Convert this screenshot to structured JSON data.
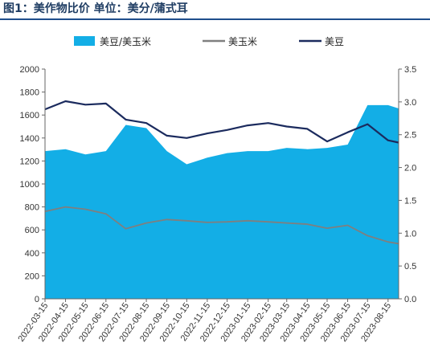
{
  "title": "图1：美作物比价 单位：美分/蒲式耳",
  "chart_data": {
    "type": "area+line",
    "x": [
      "2022-03-15",
      "2022-04-15",
      "2022-05-15",
      "2022-06-15",
      "2022-07-15",
      "2022-08-15",
      "2022-09-15",
      "2022-10-15",
      "2022-11-15",
      "2022-12-15",
      "2023-01-15",
      "2023-02-15",
      "2023-03-15",
      "2023-04-15",
      "2023-05-15",
      "2023-06-15",
      "2023-07-15",
      "2023-08-15",
      "2023-08-31"
    ],
    "x_tick_labels": [
      "2022-03-15",
      "2022-04-15",
      "2022-05-15",
      "2022-06-15",
      "2022-07-15",
      "2022-08-15",
      "2022-09-15",
      "2022-10-15",
      "2022-11-15",
      "2022-12-15",
      "2023-01-15",
      "2023-02-15",
      "2023-03-15",
      "2023-04-15",
      "2023-05-15",
      "2023-06-15",
      "2023-07-15",
      "2023-08-15"
    ],
    "left_axis": {
      "ylim": [
        0,
        2000
      ],
      "ticks": [
        "0",
        "200",
        "400",
        "600",
        "800",
        "1000",
        "1200",
        "1400",
        "1600",
        "1800",
        "2000"
      ]
    },
    "right_axis": {
      "ylim": [
        0,
        3.5
      ],
      "ticks": [
        "0.0",
        "0.5",
        "1.0",
        "1.5",
        "2.0",
        "2.5",
        "3.0",
        "3.5"
      ]
    },
    "series": [
      {
        "name": "美豆/美玉米",
        "kind": "area",
        "axis": "right",
        "color": "#13aee6",
        "values": [
          2.25,
          2.28,
          2.2,
          2.25,
          2.65,
          2.6,
          2.25,
          2.05,
          2.15,
          2.22,
          2.25,
          2.25,
          2.3,
          2.28,
          2.3,
          2.35,
          2.95,
          2.95,
          2.9
        ]
      },
      {
        "name": "美玉米",
        "kind": "line",
        "axis": "left",
        "color": "#7f7f7f",
        "values": [
          760,
          800,
          780,
          740,
          610,
          660,
          690,
          680,
          665,
          670,
          680,
          670,
          660,
          650,
          615,
          640,
          550,
          495,
          480
        ]
      },
      {
        "name": "美豆",
        "kind": "line",
        "axis": "left",
        "color": "#1b2b5e",
        "values": [
          1650,
          1720,
          1690,
          1700,
          1560,
          1530,
          1420,
          1400,
          1440,
          1470,
          1510,
          1530,
          1500,
          1480,
          1370,
          1450,
          1520,
          1380,
          1360
        ]
      }
    ],
    "legend_position": "top",
    "grid": false
  }
}
